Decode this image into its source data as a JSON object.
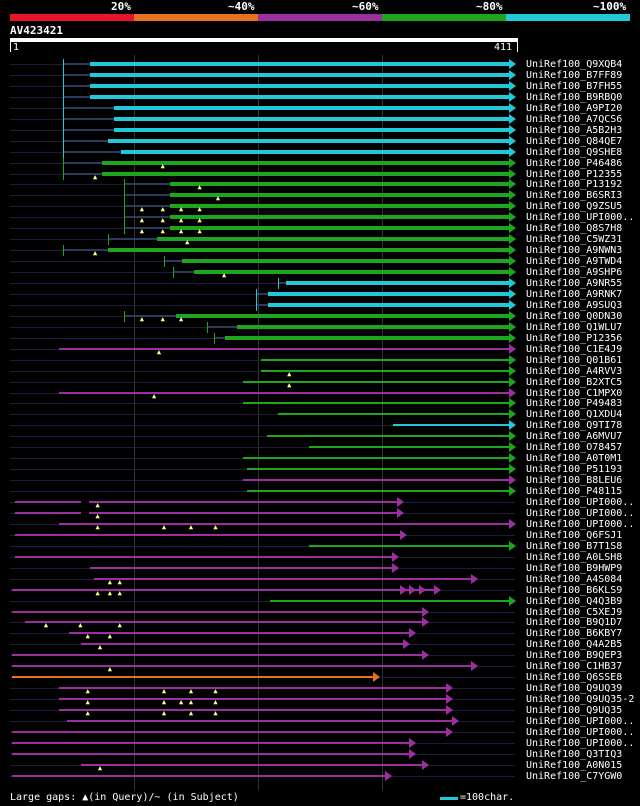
{
  "colors": {
    "c20": "#e8132c",
    "c40": "#e87020",
    "c60": "#9c2fa0",
    "c80": "#1ea51e",
    "c100": "#22c8d8",
    "bg": "#000000"
  },
  "scale": {
    "labels": [
      "20%",
      "~40%",
      "~60%",
      "~80%",
      "~100%"
    ]
  },
  "query": {
    "name": "AV423421",
    "length_start": "1",
    "length_end": "411",
    "length": 411
  },
  "legend": {
    "text": "Large gaps: ▲(in Query)/~ (in Subject)",
    "swatch_label": "=100char."
  },
  "hits": [
    {
      "label": "UniRef100_Q9XQB4",
      "color": "c100",
      "start": 43,
      "end": 411,
      "dark_end": 65,
      "gaps": [],
      "marks": []
    },
    {
      "label": "UniRef100_B7FF89",
      "color": "c100",
      "start": 43,
      "end": 411,
      "dark_end": 65,
      "gaps": [],
      "marks": []
    },
    {
      "label": "UniRef100_B7FH55",
      "color": "c100",
      "start": 43,
      "end": 411,
      "dark_end": 65,
      "gaps": [],
      "marks": []
    },
    {
      "label": "UniRef100_B9RBQ0",
      "color": "c100",
      "start": 43,
      "end": 411,
      "dark_end": 65,
      "gaps": [],
      "marks": []
    },
    {
      "label": "UniRef100_A9PI20",
      "color": "c100",
      "start": 43,
      "end": 411,
      "dark_end": 85,
      "gaps": [],
      "marks": []
    },
    {
      "label": "UniRef100_A7QCS6",
      "color": "c100",
      "start": 43,
      "end": 411,
      "dark_end": 85,
      "gaps": [],
      "marks": []
    },
    {
      "label": "UniRef100_A5B2H3",
      "color": "c100",
      "start": 43,
      "end": 411,
      "dark_end": 85,
      "gaps": [],
      "marks": []
    },
    {
      "label": "UniRef100_Q84QE7",
      "color": "c100",
      "start": 43,
      "end": 411,
      "dark_end": 80,
      "gaps": [],
      "marks": []
    },
    {
      "label": "UniRef100_Q9SHE8",
      "color": "c100",
      "start": 43,
      "end": 411,
      "dark_end": 90,
      "gaps": [],
      "marks": []
    },
    {
      "label": "UniRef100_P46486",
      "color": "c80",
      "start": 43,
      "end": 411,
      "dark_end": 75,
      "gaps": [],
      "marks": [
        125
      ]
    },
    {
      "label": "UniRef100_P12355",
      "color": "c80",
      "start": 43,
      "end": 411,
      "dark_end": 75,
      "gaps": [],
      "marks": [
        70
      ]
    },
    {
      "label": "UniRef100_P13192",
      "color": "c80",
      "start": 93,
      "end": 411,
      "dark_end": 130,
      "gaps": [],
      "marks": [
        155
      ]
    },
    {
      "label": "UniRef100_B6SRI3",
      "color": "c80",
      "start": 93,
      "end": 411,
      "dark_end": 130,
      "gaps": [],
      "marks": [
        170
      ]
    },
    {
      "label": "UniRef100_Q9ZSU5",
      "color": "c80",
      "start": 93,
      "end": 411,
      "dark_end": 130,
      "gaps": [],
      "marks": [
        108,
        125,
        140,
        155
      ]
    },
    {
      "label": "UniRef100_UPI000..",
      "color": "c80",
      "start": 93,
      "end": 411,
      "dark_end": 130,
      "gaps": [],
      "marks": [
        108,
        125,
        140,
        155
      ]
    },
    {
      "label": "UniRef100_Q8S7H8",
      "color": "c80",
      "start": 93,
      "end": 411,
      "dark_end": 130,
      "gaps": [],
      "marks": [
        108,
        125,
        140,
        155
      ]
    },
    {
      "label": "UniRef100_C5WZ31",
      "color": "c80",
      "start": 80,
      "end": 411,
      "dark_end": 120,
      "gaps": [],
      "marks": [
        145
      ]
    },
    {
      "label": "UniRef100_A9NWN3",
      "color": "c80",
      "start": 43,
      "end": 411,
      "dark_end": 80,
      "gaps": [],
      "marks": [
        70
      ]
    },
    {
      "label": "UniRef100_A9TWD4",
      "color": "c80",
      "start": 125,
      "end": 411,
      "dark_end": 140,
      "gaps": [],
      "marks": []
    },
    {
      "label": "UniRef100_A9SHP6",
      "color": "c80",
      "start": 133,
      "end": 411,
      "dark_end": 150,
      "gaps": [],
      "marks": [
        175
      ]
    },
    {
      "label": "UniRef100_A9NR55",
      "color": "c100",
      "start": 218,
      "end": 411,
      "dark_end": 225,
      "gaps": [],
      "marks": []
    },
    {
      "label": "UniRef100_A9RNK7",
      "color": "c100",
      "start": 200,
      "end": 411,
      "dark_end": 210,
      "gaps": [],
      "marks": []
    },
    {
      "label": "UniRef100_A9SUQ3",
      "color": "c100",
      "start": 200,
      "end": 411,
      "dark_end": 210,
      "gaps": [],
      "marks": []
    },
    {
      "label": "UniRef100_Q0DN30",
      "color": "c80",
      "start": 93,
      "end": 411,
      "dark_end": 135,
      "gaps": [],
      "marks": [
        108,
        125,
        140
      ]
    },
    {
      "label": "UniRef100_Q1WLU7",
      "color": "c80",
      "start": 160,
      "end": 411,
      "dark_end": 185,
      "gaps": [],
      "marks": []
    },
    {
      "label": "UniRef100_P12356",
      "color": "c80",
      "start": 166,
      "end": 411,
      "dark_end": 175,
      "gaps": [],
      "marks": []
    },
    {
      "label": "UniRef100_C1E4J9",
      "color": "c60",
      "start": 40,
      "end": 411,
      "dark_end": 0,
      "gaps": [],
      "marks": [
        122
      ]
    },
    {
      "label": "UniRef100_Q01B61",
      "color": "c80",
      "start": 204,
      "end": 411,
      "dark_end": 0,
      "gaps": [],
      "marks": []
    },
    {
      "label": "UniRef100_A4RVV3",
      "color": "c80",
      "start": 204,
      "end": 411,
      "dark_end": 0,
      "gaps": [],
      "marks": [
        228
      ]
    },
    {
      "label": "UniRef100_B2XTC5",
      "color": "c80",
      "start": 190,
      "end": 411,
      "dark_end": 0,
      "gaps": [],
      "marks": [
        228
      ]
    },
    {
      "label": "UniRef100_C1MPX0",
      "color": "c60",
      "start": 40,
      "end": 411,
      "dark_end": 0,
      "gaps": [],
      "marks": [
        118
      ]
    },
    {
      "label": "UniRef100_P49483",
      "color": "c80",
      "start": 190,
      "end": 411,
      "dark_end": 0,
      "gaps": [],
      "marks": []
    },
    {
      "label": "UniRef100_Q1XDU4",
      "color": "c80",
      "start": 218,
      "end": 411,
      "dark_end": 0,
      "gaps": [],
      "marks": []
    },
    {
      "label": "UniRef100_Q9TI78",
      "color": "c100",
      "start": 312,
      "end": 411,
      "dark_end": 0,
      "gaps": [],
      "marks": []
    },
    {
      "label": "UniRef100_A6MVU7",
      "color": "c80",
      "start": 209,
      "end": 411,
      "dark_end": 0,
      "gaps": [],
      "marks": []
    },
    {
      "label": "UniRef100_O78457",
      "color": "c80",
      "start": 243,
      "end": 411,
      "dark_end": 0,
      "gaps": [],
      "marks": []
    },
    {
      "label": "UniRef100_A0T0M1",
      "color": "c80",
      "start": 190,
      "end": 411,
      "dark_end": 0,
      "gaps": [],
      "marks": []
    },
    {
      "label": "UniRef100_P51193",
      "color": "c80",
      "start": 193,
      "end": 411,
      "dark_end": 0,
      "gaps": [],
      "marks": []
    },
    {
      "label": "UniRef100_B8LEU6",
      "color": "c60",
      "start": 190,
      "end": 411,
      "dark_end": 0,
      "gaps": [],
      "marks": []
    },
    {
      "label": "UniRef100_P48115",
      "color": "c80",
      "start": 193,
      "end": 411,
      "dark_end": 0,
      "gaps": [],
      "marks": []
    },
    {
      "label": "UniRef100_UPI000..",
      "color": "c60",
      "start": 4,
      "end": 320,
      "dark_end": 0,
      "gaps": [
        58
      ],
      "marks": [
        72
      ]
    },
    {
      "label": "UniRef100_UPI000..",
      "color": "c60",
      "start": 4,
      "end": 320,
      "dark_end": 0,
      "gaps": [
        58
      ],
      "marks": [
        72
      ]
    },
    {
      "label": "UniRef100_UPI000..",
      "color": "c60",
      "start": 40,
      "end": 411,
      "dark_end": 0,
      "gaps": [],
      "marks": [
        72,
        126,
        148,
        168
      ]
    },
    {
      "label": "UniRef100_Q6FSJ1",
      "color": "c60",
      "start": 4,
      "end": 322,
      "dark_end": 0,
      "gaps": [],
      "marks": []
    },
    {
      "label": "UniRef100_B7T1S8",
      "color": "c80",
      "start": 243,
      "end": 411,
      "dark_end": 0,
      "gaps": [],
      "marks": []
    },
    {
      "label": "UniRef100_A0LSH8",
      "color": "c60",
      "start": 4,
      "end": 316,
      "dark_end": 0,
      "gaps": [],
      "marks": []
    },
    {
      "label": "UniRef100_B9HWP9",
      "color": "c60",
      "start": 65,
      "end": 316,
      "dark_end": 0,
      "gaps": [],
      "marks": []
    },
    {
      "label": "UniRef100_A4S084",
      "color": "c60",
      "start": 68,
      "end": 380,
      "dark_end": 0,
      "gaps": [],
      "marks": [
        82,
        90
      ]
    },
    {
      "label": "UniRef100_B6KLS9",
      "color": "c60",
      "start": 2,
      "end": 350,
      "dark_end": 0,
      "gaps": [],
      "marks": [
        72,
        82,
        90
      ],
      "extra_tris": [
        322,
        330,
        338
      ]
    },
    {
      "label": "UniRef100_Q4Q3B9",
      "color": "c80",
      "start": 212,
      "end": 411,
      "dark_end": 0,
      "gaps": [],
      "marks": []
    },
    {
      "label": "UniRef100_C5XEJ9",
      "color": "c60",
      "start": 2,
      "end": 340,
      "dark_end": 0,
      "gaps": [],
      "marks": []
    },
    {
      "label": "UniRef100_B9Q1D7",
      "color": "c60",
      "start": 12,
      "end": 340,
      "dark_end": 0,
      "gaps": [],
      "marks": [
        30,
        58,
        90
      ]
    },
    {
      "label": "UniRef100_B6KBY7",
      "color": "c60",
      "start": 48,
      "end": 330,
      "dark_end": 0,
      "gaps": [],
      "marks": [
        64,
        82
      ]
    },
    {
      "label": "UniRef100_Q4A2B5",
      "color": "c60",
      "start": 58,
      "end": 325,
      "dark_end": 0,
      "gaps": [],
      "marks": [
        74
      ]
    },
    {
      "label": "UniRef100_B9QEP3",
      "color": "c60",
      "start": 2,
      "end": 340,
      "dark_end": 0,
      "gaps": [],
      "marks": []
    },
    {
      "label": "UniRef100_C1HB37",
      "color": "c60",
      "start": 2,
      "end": 380,
      "dark_end": 0,
      "gaps": [],
      "marks": [
        82
      ]
    },
    {
      "label": "UniRef100_Q6SSE8",
      "color": "c40",
      "start": 2,
      "end": 300,
      "dark_end": 0,
      "gaps": [],
      "marks": []
    },
    {
      "label": "UniRef100_Q9UQ39",
      "color": "c60",
      "start": 40,
      "end": 360,
      "dark_end": 0,
      "gaps": [],
      "marks": [
        64,
        126,
        148,
        168
      ]
    },
    {
      "label": "UniRef100_Q9UQ35-2",
      "color": "c60",
      "start": 40,
      "end": 360,
      "dark_end": 0,
      "gaps": [],
      "marks": [
        64,
        126,
        140,
        148,
        168
      ]
    },
    {
      "label": "UniRef100_Q9UQ35",
      "color": "c60",
      "start": 40,
      "end": 360,
      "dark_end": 0,
      "gaps": [],
      "marks": [
        64,
        126,
        148,
        168
      ]
    },
    {
      "label": "UniRef100_UPI000..",
      "color": "c60",
      "start": 46,
      "end": 365,
      "dark_end": 0,
      "gaps": [],
      "marks": []
    },
    {
      "label": "UniRef100_UPI000..",
      "color": "c60",
      "start": 2,
      "end": 360,
      "dark_end": 0,
      "gaps": [],
      "marks": []
    },
    {
      "label": "UniRef100_UPI000..",
      "color": "c60",
      "start": 2,
      "end": 330,
      "dark_end": 0,
      "gaps": [],
      "marks": []
    },
    {
      "label": "UniRef100_Q3TIQ3",
      "color": "c60",
      "start": 2,
      "end": 330,
      "dark_end": 0,
      "gaps": [],
      "marks": []
    },
    {
      "label": "UniRef100_A0N015",
      "color": "c60",
      "start": 58,
      "end": 340,
      "dark_end": 0,
      "gaps": [],
      "marks": [
        74
      ]
    },
    {
      "label": "UniRef100_C7YGW0",
      "color": "c60",
      "start": 2,
      "end": 310,
      "dark_end": 0,
      "gaps": [],
      "marks": []
    }
  ]
}
